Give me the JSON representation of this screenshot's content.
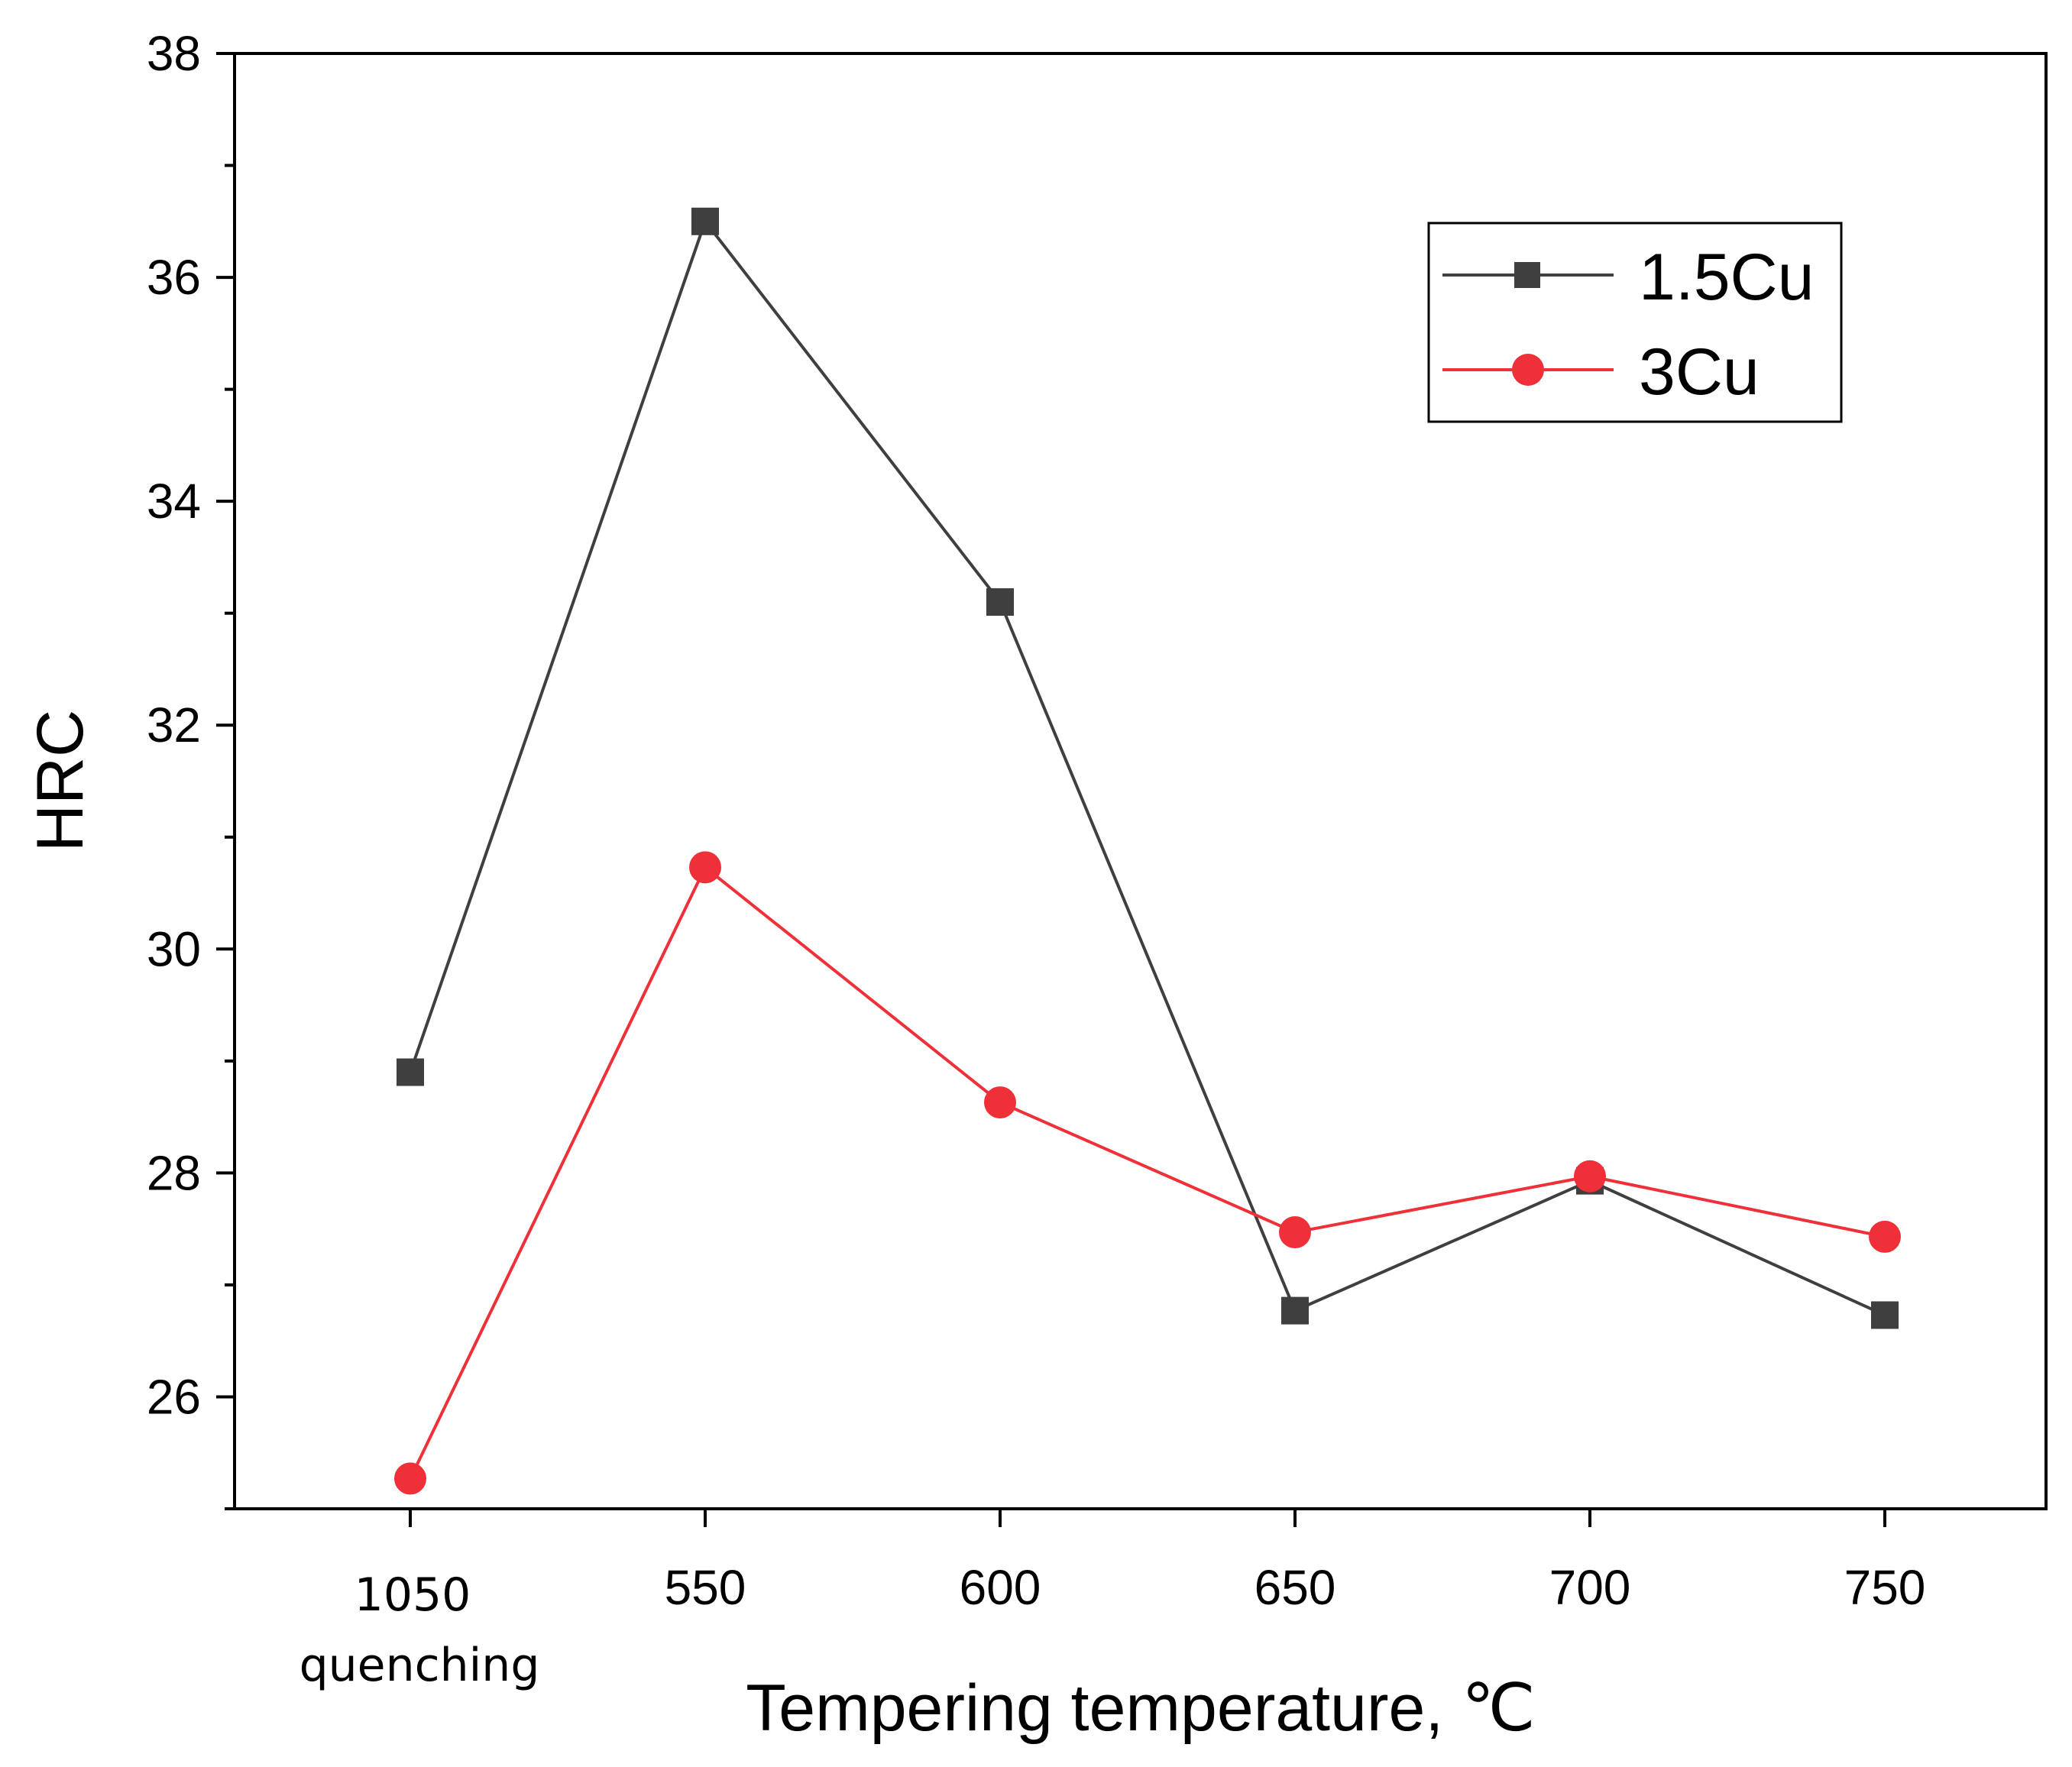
{
  "chart_data": {
    "type": "line",
    "title": "",
    "xlabel": "Tempering temperature, ℃",
    "ylabel": "HRC",
    "categories": [
      "1050",
      "550",
      "600",
      "650",
      "700",
      "750"
    ],
    "category_sublabels": [
      "quenching",
      "",
      "",
      "",
      "",
      ""
    ],
    "ylim": [
      25,
      38
    ],
    "yticks": [
      26,
      28,
      30,
      32,
      34,
      36,
      38
    ],
    "grid": false,
    "legend_position": "top-right",
    "series": [
      {
        "name": "1.5Cu",
        "color": "#3f3f3f",
        "marker": "square",
        "values": [
          28.9,
          36.5,
          33.1,
          26.77,
          27.93,
          26.73
        ]
      },
      {
        "name": "3Cu",
        "color": "#f03039",
        "marker": "circle",
        "values": [
          25.27,
          30.73,
          28.63,
          27.47,
          27.97,
          27.43
        ]
      }
    ]
  }
}
